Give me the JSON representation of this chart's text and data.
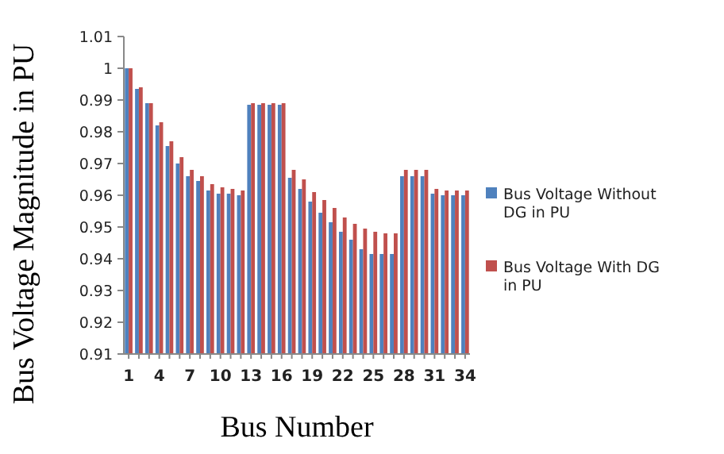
{
  "chart_data": {
    "type": "bar",
    "xlabel": "Bus Number",
    "ylabel": "Bus Voltage Magnitude in PU",
    "categories": [
      "1",
      null,
      null,
      "4",
      null,
      null,
      "7",
      null,
      null,
      "10",
      null,
      null,
      "13",
      null,
      null,
      "16",
      null,
      null,
      "19",
      null,
      null,
      "22",
      null,
      null,
      "25",
      null,
      null,
      "28",
      null,
      null,
      "31",
      null,
      null,
      "34"
    ],
    "series": [
      {
        "name": "Bus Voltage Without DG in PU",
        "color": "#4f81bd",
        "values": [
          1.0,
          0.9935,
          0.989,
          0.982,
          0.9755,
          0.97,
          0.966,
          0.9645,
          0.9615,
          0.9605,
          0.9605,
          0.96,
          0.9885,
          0.9885,
          0.9885,
          0.9885,
          0.9655,
          0.962,
          0.958,
          0.9545,
          0.9515,
          0.9485,
          0.946,
          0.943,
          0.9415,
          0.9415,
          0.9415,
          0.966,
          0.966,
          0.966,
          0.9605,
          0.96,
          0.96,
          0.96
        ]
      },
      {
        "name": "Bus Voltage With DG in PU",
        "color": "#c0504d",
        "values": [
          1.0,
          0.994,
          0.989,
          0.983,
          0.977,
          0.972,
          0.968,
          0.966,
          0.9635,
          0.9625,
          0.962,
          0.9615,
          0.989,
          0.989,
          0.989,
          0.989,
          0.968,
          0.965,
          0.961,
          0.9585,
          0.956,
          0.953,
          0.951,
          0.9495,
          0.9485,
          0.948,
          0.948,
          0.968,
          0.968,
          0.968,
          0.962,
          0.9615,
          0.9615,
          0.9615
        ]
      }
    ],
    "ylim": [
      0.91,
      1.01
    ],
    "yticks": [
      0.91,
      0.92,
      0.93,
      0.94,
      0.95,
      0.96,
      0.97,
      0.98,
      0.99,
      1,
      1.01
    ],
    "grid": false,
    "legend": "right"
  }
}
